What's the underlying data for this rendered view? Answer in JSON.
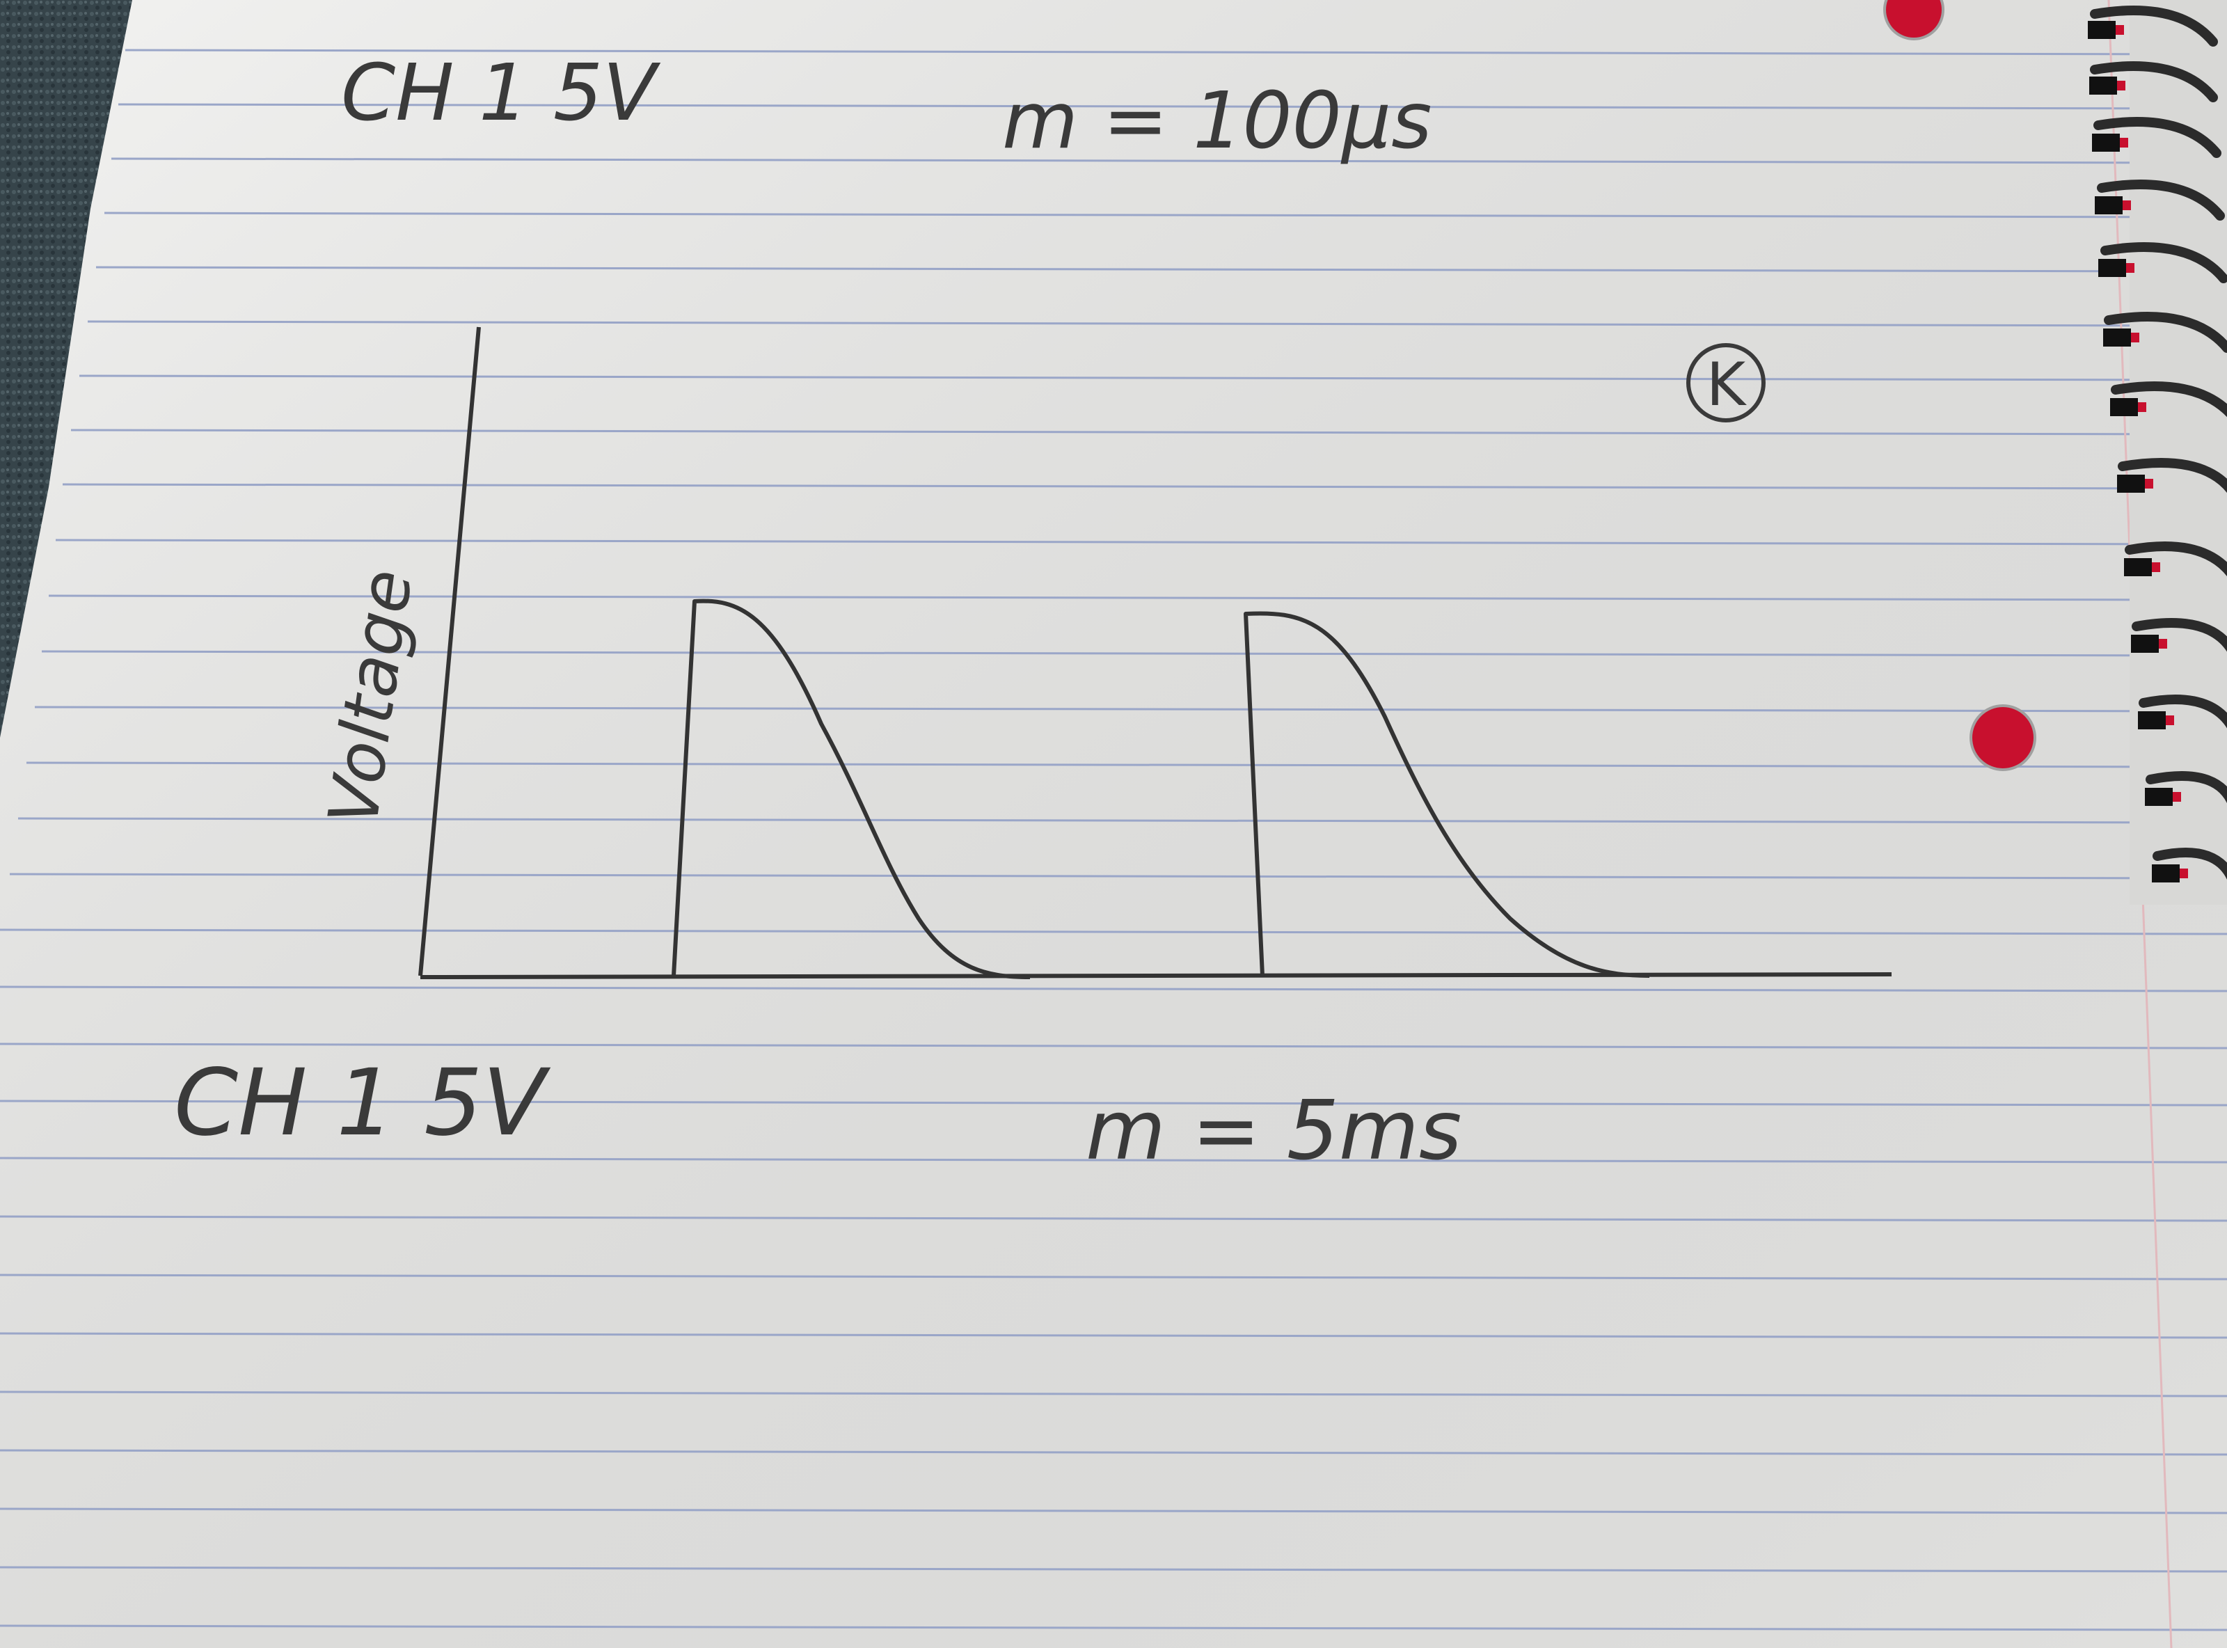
{
  "notes": {
    "top_left": "CH 1 5V",
    "top_right": "m = 100μs",
    "bottom_left": "CH 1 5V",
    "bottom_right": "m = 5ms",
    "circled_letter": "K"
  },
  "sketch": {
    "y_axis_label": "Voltage"
  },
  "colors": {
    "paper": "#eeeeec",
    "rule_line": "#9aa6c8",
    "margin_line": "#e2b9bd",
    "ink": "#3a3a3a",
    "binding_hole": "#c8102e",
    "carpet": "#36444a"
  }
}
